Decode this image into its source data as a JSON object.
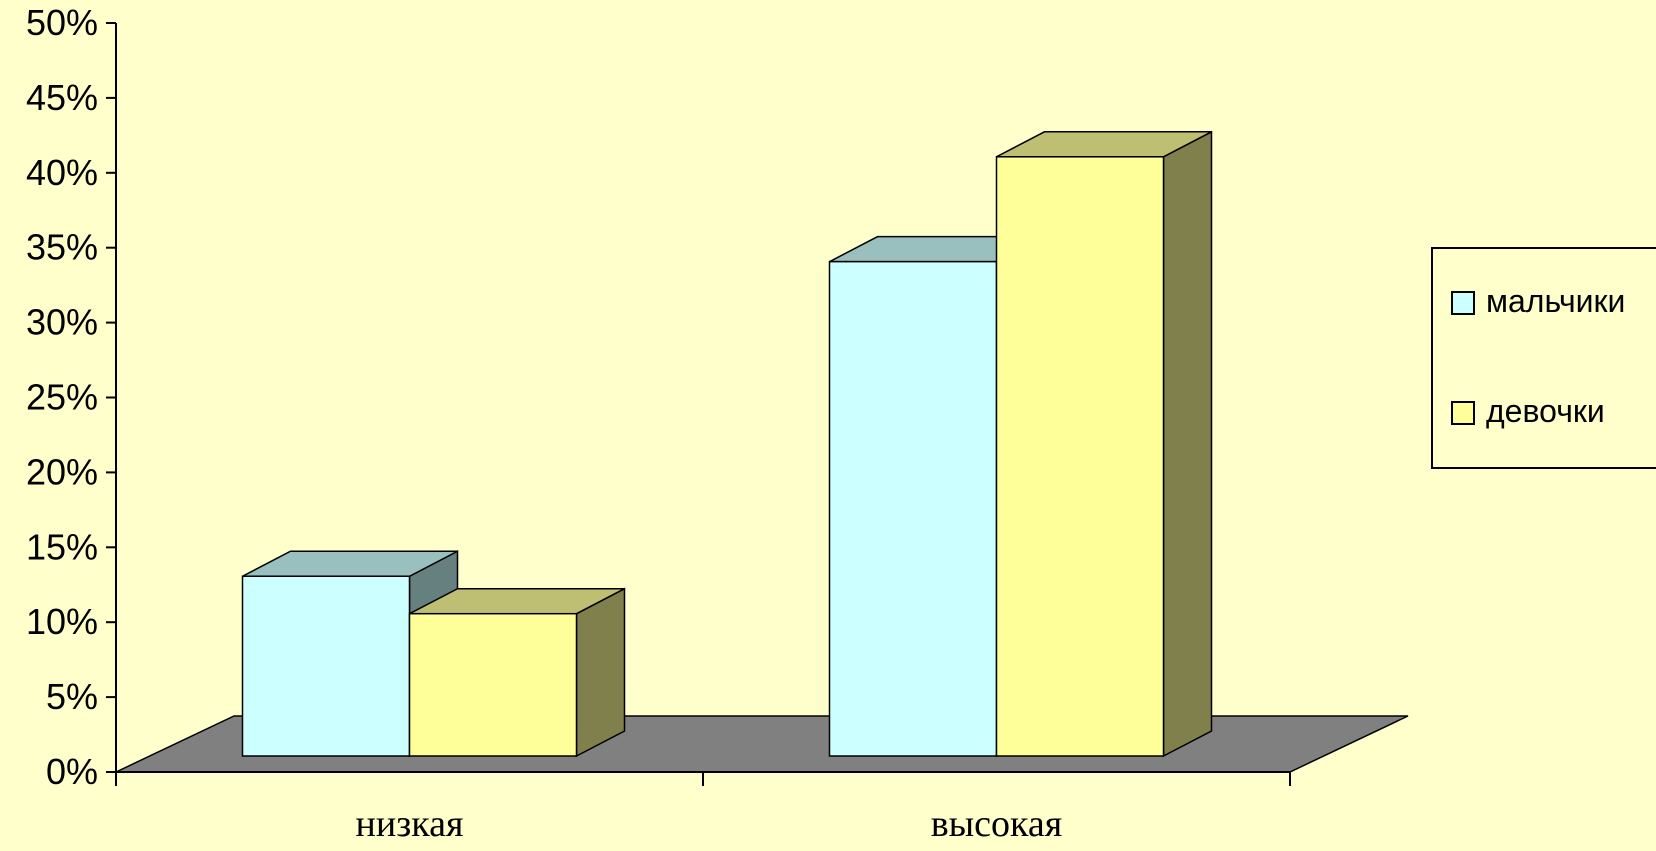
{
  "chart_data": {
    "type": "bar",
    "style": "3d-clustered-column",
    "categories": [
      "низкая",
      "высокая"
    ],
    "series": [
      {
        "name": "мальчики",
        "values": [
          12,
          33
        ],
        "color": "#CCFFFF"
      },
      {
        "name": "девочки",
        "values": [
          9.5,
          40
        ],
        "color": "#FFFF99"
      }
    ],
    "ylim": [
      0,
      50
    ],
    "yticks": [
      "0%",
      "5%",
      "10%",
      "15%",
      "20%",
      "25%",
      "30%",
      "35%",
      "40%",
      "45%",
      "50%"
    ],
    "legend_position": "right",
    "grid": false,
    "colors": {
      "background": "#FFFFCC",
      "floor": "#808080"
    }
  }
}
